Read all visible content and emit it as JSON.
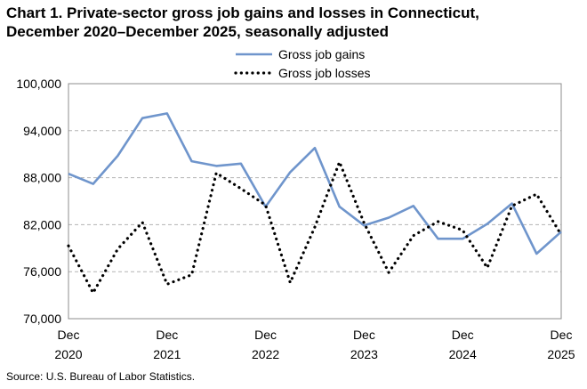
{
  "title_line1": "Chart 1. Private-sector gross job gains and losses in Connecticut,",
  "title_line2": "December 2020–December 2025, seasonally adjusted",
  "source": "Source: U.S. Bureau of Labor Statistics.",
  "chart_data": {
    "type": "line",
    "x": [
      "Dec 2020",
      "Mar 2021",
      "Jun 2021",
      "Sep 2021",
      "Dec 2021",
      "Mar 2022",
      "Jun 2022",
      "Sep 2022",
      "Dec 2022",
      "Mar 2023",
      "Jun 2023",
      "Sep 2023",
      "Dec 2023",
      "Mar 2024",
      "Jun 2024",
      "Sep 2024",
      "Dec 2024",
      "Mar 2025",
      "Jun 2025",
      "Sep 2025",
      "Dec 2025"
    ],
    "x_tick_labels": [
      {
        "month": "Dec",
        "year": "2020"
      },
      {
        "month": "Dec",
        "year": "2021"
      },
      {
        "month": "Dec",
        "year": "2022"
      },
      {
        "month": "Dec",
        "year": "2023"
      },
      {
        "month": "Dec",
        "year": "2024"
      },
      {
        "month": "Dec",
        "year": "2025"
      }
    ],
    "y_tick_labels": [
      "70,000",
      "76,000",
      "82,000",
      "88,000",
      "94,000",
      "100,000"
    ],
    "y_ticks": [
      70000,
      76000,
      82000,
      88000,
      94000,
      100000
    ],
    "ylim": [
      70000,
      100000
    ],
    "grid": "horizontal dashed",
    "legend_position": "top-center",
    "series": [
      {
        "name": "Gross job gains",
        "color": "#6f95cc",
        "style": "solid",
        "values": [
          88500,
          87200,
          90800,
          95600,
          96200,
          90100,
          89500,
          89800,
          84300,
          88700,
          91800,
          84300,
          81900,
          82900,
          84400,
          80200,
          80200,
          82100,
          84700,
          78300,
          81100
        ]
      },
      {
        "name": "Gross job losses",
        "color": "#000000",
        "style": "dotted",
        "values": [
          79300,
          73300,
          78900,
          82300,
          74400,
          75600,
          88600,
          86600,
          84500,
          74600,
          81700,
          90000,
          82200,
          75900,
          80600,
          82400,
          81300,
          76500,
          84400,
          85900,
          80700
        ]
      }
    ]
  }
}
